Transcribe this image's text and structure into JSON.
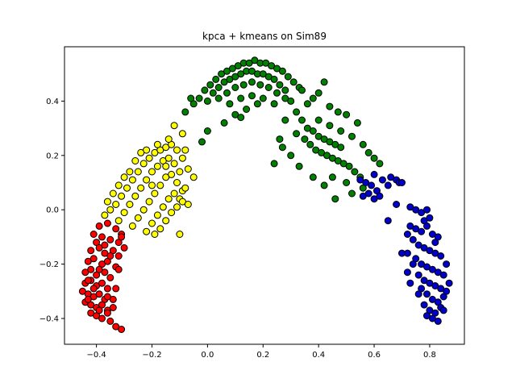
{
  "chart_data": {
    "type": "scatter",
    "title": "kpca + kmeans on Sim89",
    "xlabel": "",
    "ylabel": "",
    "xlim": [
      -0.515,
      0.925
    ],
    "ylim": [
      -0.495,
      0.6
    ],
    "grid": false,
    "xticks": [
      -0.4,
      -0.2,
      0.0,
      0.2,
      0.4,
      0.6,
      0.8
    ],
    "yticks": [
      -0.4,
      -0.2,
      0.0,
      0.2,
      0.4
    ],
    "xtick_labels": [
      "−0.4",
      "−0.2",
      "0.0",
      "0.2",
      "0.4",
      "0.6",
      "0.8"
    ],
    "ytick_labels": [
      "−0.4",
      "−0.2",
      "0.0",
      "0.2",
      "0.4"
    ],
    "series": [
      {
        "color": "#ff0000",
        "points": [
          [
            -0.41,
            -0.09
          ],
          [
            -0.39,
            -0.06
          ],
          [
            -0.36,
            -0.05
          ],
          [
            -0.33,
            -0.07
          ],
          [
            -0.31,
            -0.09
          ],
          [
            -0.4,
            -0.12
          ],
          [
            -0.38,
            -0.1
          ],
          [
            -0.35,
            -0.11
          ],
          [
            -0.32,
            -0.12
          ],
          [
            -0.3,
            -0.14
          ],
          [
            -0.42,
            -0.15
          ],
          [
            -0.39,
            -0.14
          ],
          [
            -0.37,
            -0.16
          ],
          [
            -0.34,
            -0.15
          ],
          [
            -0.32,
            -0.17
          ],
          [
            -0.43,
            -0.19
          ],
          [
            -0.41,
            -0.18
          ],
          [
            -0.38,
            -0.2
          ],
          [
            -0.36,
            -0.19
          ],
          [
            -0.33,
            -0.21
          ],
          [
            -0.44,
            -0.23
          ],
          [
            -0.42,
            -0.22
          ],
          [
            -0.4,
            -0.24
          ],
          [
            -0.37,
            -0.23
          ],
          [
            -0.35,
            -0.25
          ],
          [
            -0.44,
            -0.27
          ],
          [
            -0.42,
            -0.26
          ],
          [
            -0.4,
            -0.28
          ],
          [
            -0.38,
            -0.27
          ],
          [
            -0.36,
            -0.29
          ],
          [
            -0.45,
            -0.3
          ],
          [
            -0.43,
            -0.31
          ],
          [
            -0.41,
            -0.32
          ],
          [
            -0.39,
            -0.31
          ],
          [
            -0.37,
            -0.33
          ],
          [
            -0.44,
            -0.34
          ],
          [
            -0.42,
            -0.35
          ],
          [
            -0.4,
            -0.36
          ],
          [
            -0.38,
            -0.35
          ],
          [
            -0.36,
            -0.37
          ],
          [
            -0.42,
            -0.38
          ],
          [
            -0.4,
            -0.39
          ],
          [
            -0.38,
            -0.4
          ],
          [
            -0.36,
            -0.38
          ],
          [
            -0.34,
            -0.36
          ],
          [
            -0.33,
            -0.29
          ],
          [
            -0.34,
            -0.33
          ],
          [
            -0.32,
            -0.22
          ],
          [
            -0.33,
            -0.43
          ],
          [
            -0.35,
            -0.41
          ],
          [
            -0.31,
            -0.1
          ],
          [
            -0.43,
            -0.26
          ],
          [
            -0.39,
            -0.22
          ],
          [
            -0.37,
            -0.13
          ],
          [
            -0.41,
            -0.29
          ],
          [
            -0.39,
            -0.37
          ],
          [
            -0.43,
            -0.33
          ],
          [
            -0.35,
            -0.17
          ],
          [
            -0.31,
            -0.44
          ],
          [
            -0.36,
            -0.32
          ]
        ]
      },
      {
        "color": "#ffff00",
        "points": [
          [
            -0.37,
            -0.02
          ],
          [
            -0.35,
            0.0
          ],
          [
            -0.33,
            0.02
          ],
          [
            -0.31,
            0.05
          ],
          [
            -0.29,
            0.08
          ],
          [
            -0.27,
            0.11
          ],
          [
            -0.25,
            0.14
          ],
          [
            -0.23,
            0.17
          ],
          [
            -0.21,
            0.19
          ],
          [
            -0.19,
            0.21
          ],
          [
            -0.17,
            0.22
          ],
          [
            -0.15,
            0.23
          ],
          [
            -0.13,
            0.24
          ],
          [
            -0.11,
            0.22
          ],
          [
            -0.09,
            0.19
          ],
          [
            -0.32,
            -0.04
          ],
          [
            -0.3,
            -0.01
          ],
          [
            -0.28,
            0.02
          ],
          [
            -0.26,
            0.05
          ],
          [
            -0.24,
            0.08
          ],
          [
            -0.22,
            0.11
          ],
          [
            -0.2,
            0.14
          ],
          [
            -0.18,
            0.16
          ],
          [
            -0.16,
            0.18
          ],
          [
            -0.14,
            0.19
          ],
          [
            -0.12,
            0.17
          ],
          [
            -0.1,
            0.14
          ],
          [
            -0.27,
            -0.06
          ],
          [
            -0.25,
            -0.03
          ],
          [
            -0.23,
            0.0
          ],
          [
            -0.21,
            0.03
          ],
          [
            -0.19,
            0.06
          ],
          [
            -0.17,
            0.09
          ],
          [
            -0.15,
            0.12
          ],
          [
            -0.13,
            0.13
          ],
          [
            -0.11,
            0.1
          ],
          [
            -0.09,
            0.07
          ],
          [
            -0.22,
            -0.08
          ],
          [
            -0.2,
            -0.05
          ],
          [
            -0.18,
            -0.02
          ],
          [
            -0.16,
            0.01
          ],
          [
            -0.14,
            0.04
          ],
          [
            -0.12,
            0.06
          ],
          [
            -0.1,
            0.04
          ],
          [
            -0.08,
            0.08
          ],
          [
            -0.17,
            -0.07
          ],
          [
            -0.15,
            -0.04
          ],
          [
            -0.13,
            -0.01
          ],
          [
            -0.11,
            0.01
          ],
          [
            -0.09,
            0.03
          ],
          [
            -0.34,
            0.06
          ],
          [
            -0.3,
            0.12
          ],
          [
            -0.26,
            0.18
          ],
          [
            -0.22,
            0.22
          ],
          [
            -0.18,
            0.24
          ],
          [
            -0.14,
            0.26
          ],
          [
            -0.12,
            0.31
          ],
          [
            -0.09,
            0.28
          ],
          [
            -0.07,
            0.15
          ],
          [
            -0.05,
            0.12
          ],
          [
            -0.08,
            0.22
          ],
          [
            -0.07,
            0.02
          ],
          [
            -0.1,
            -0.09
          ],
          [
            -0.24,
            0.21
          ],
          [
            -0.2,
            0.09
          ],
          [
            -0.28,
            0.14
          ],
          [
            -0.32,
            0.09
          ],
          [
            -0.36,
            0.03
          ],
          [
            -0.15,
            0.16
          ],
          [
            -0.19,
            -0.09
          ]
        ]
      },
      {
        "color": "#008000",
        "points": [
          [
            -0.05,
            0.39
          ],
          [
            -0.03,
            0.41
          ],
          [
            -0.01,
            0.44
          ],
          [
            0.01,
            0.46
          ],
          [
            0.03,
            0.48
          ],
          [
            0.05,
            0.5
          ],
          [
            0.07,
            0.51
          ],
          [
            0.09,
            0.52
          ],
          [
            0.11,
            0.53
          ],
          [
            0.13,
            0.54
          ],
          [
            0.15,
            0.54
          ],
          [
            0.17,
            0.55
          ],
          [
            0.19,
            0.54
          ],
          [
            0.21,
            0.54
          ],
          [
            0.23,
            0.53
          ],
          [
            0.25,
            0.52
          ],
          [
            0.27,
            0.51
          ],
          [
            0.29,
            0.49
          ],
          [
            0.31,
            0.47
          ],
          [
            0.33,
            0.45
          ],
          [
            0.0,
            0.4
          ],
          [
            0.02,
            0.43
          ],
          [
            0.04,
            0.45
          ],
          [
            0.06,
            0.47
          ],
          [
            0.08,
            0.48
          ],
          [
            0.1,
            0.49
          ],
          [
            0.12,
            0.5
          ],
          [
            0.14,
            0.51
          ],
          [
            0.16,
            0.51
          ],
          [
            0.18,
            0.5
          ],
          [
            0.2,
            0.5
          ],
          [
            0.22,
            0.49
          ],
          [
            0.24,
            0.48
          ],
          [
            0.26,
            0.46
          ],
          [
            0.28,
            0.44
          ],
          [
            0.04,
            0.41
          ],
          [
            0.07,
            0.43
          ],
          [
            0.1,
            0.45
          ],
          [
            0.13,
            0.46
          ],
          [
            0.16,
            0.47
          ],
          [
            0.19,
            0.46
          ],
          [
            0.22,
            0.45
          ],
          [
            0.25,
            0.43
          ],
          [
            0.28,
            0.41
          ],
          [
            0.08,
            0.39
          ],
          [
            0.12,
            0.41
          ],
          [
            0.16,
            0.42
          ],
          [
            0.2,
            0.41
          ],
          [
            0.24,
            0.39
          ],
          [
            0.14,
            0.37
          ],
          [
            0.3,
            0.4
          ],
          [
            0.32,
            0.36
          ],
          [
            0.34,
            0.33
          ],
          [
            0.36,
            0.3
          ],
          [
            0.38,
            0.29
          ],
          [
            0.4,
            0.27
          ],
          [
            0.42,
            0.26
          ],
          [
            0.44,
            0.25
          ],
          [
            0.46,
            0.24
          ],
          [
            0.48,
            0.23
          ],
          [
            0.35,
            0.26
          ],
          [
            0.37,
            0.24
          ],
          [
            0.39,
            0.22
          ],
          [
            0.41,
            0.21
          ],
          [
            0.43,
            0.2
          ],
          [
            0.45,
            0.19
          ],
          [
            0.47,
            0.18
          ],
          [
            0.49,
            0.17
          ],
          [
            0.51,
            0.16
          ],
          [
            0.53,
            0.14
          ],
          [
            0.4,
            0.33
          ],
          [
            0.44,
            0.31
          ],
          [
            0.48,
            0.29
          ],
          [
            0.52,
            0.27
          ],
          [
            0.56,
            0.24
          ],
          [
            0.58,
            0.21
          ],
          [
            0.6,
            0.19
          ],
          [
            0.62,
            0.17
          ],
          [
            0.55,
            0.12
          ],
          [
            0.5,
            0.1
          ],
          [
            0.45,
            0.12
          ],
          [
            0.42,
            0.09
          ],
          [
            0.38,
            0.12
          ],
          [
            0.33,
            0.16
          ],
          [
            0.3,
            0.2
          ],
          [
            0.27,
            0.23
          ],
          [
            0.32,
            0.28
          ],
          [
            0.28,
            0.33
          ],
          [
            0.36,
            0.39
          ],
          [
            0.4,
            0.43
          ],
          [
            0.42,
            0.47
          ],
          [
            0.38,
            0.41
          ],
          [
            0.44,
            0.38
          ],
          [
            0.5,
            0.35
          ],
          [
            0.54,
            0.32
          ],
          [
            0.46,
            0.04
          ],
          [
            0.56,
            0.08
          ],
          [
            0.52,
            0.06
          ],
          [
            0.47,
            0.36
          ],
          [
            0.34,
            0.44
          ],
          [
            -0.08,
            0.36
          ],
          [
            -0.06,
            0.41
          ],
          [
            0.0,
            0.29
          ],
          [
            -0.02,
            0.25
          ],
          [
            0.06,
            0.32
          ],
          [
            0.1,
            0.35
          ],
          [
            0.18,
            0.39
          ],
          [
            0.26,
            0.26
          ],
          [
            0.24,
            0.17
          ],
          [
            0.12,
            0.34
          ]
        ]
      },
      {
        "color": "#0000cd",
        "points": [
          [
            0.55,
            0.11
          ],
          [
            0.57,
            0.1
          ],
          [
            0.59,
            0.09
          ],
          [
            0.61,
            0.07
          ],
          [
            0.63,
            0.11
          ],
          [
            0.6,
            0.13
          ],
          [
            0.58,
            0.06
          ],
          [
            0.56,
            0.05
          ],
          [
            0.66,
            0.12
          ],
          [
            0.68,
            0.11
          ],
          [
            0.69,
            0.1
          ],
          [
            0.7,
            0.1
          ],
          [
            0.65,
            0.09
          ],
          [
            0.62,
            0.05
          ],
          [
            0.6,
            0.04
          ],
          [
            0.68,
            0.02
          ],
          [
            0.65,
            -0.04
          ],
          [
            0.73,
            0.01
          ],
          [
            0.75,
            0.0
          ],
          [
            0.77,
            -0.01
          ],
          [
            0.79,
            0.0
          ],
          [
            0.73,
            -0.06
          ],
          [
            0.75,
            -0.07
          ],
          [
            0.77,
            -0.08
          ],
          [
            0.79,
            -0.06
          ],
          [
            0.81,
            -0.09
          ],
          [
            0.83,
            -0.1
          ],
          [
            0.74,
            -0.11
          ],
          [
            0.76,
            -0.13
          ],
          [
            0.78,
            -0.14
          ],
          [
            0.8,
            -0.15
          ],
          [
            0.82,
            -0.16
          ],
          [
            0.84,
            -0.17
          ],
          [
            0.72,
            -0.16
          ],
          [
            0.7,
            -0.16
          ],
          [
            0.75,
            -0.18
          ],
          [
            0.77,
            -0.2
          ],
          [
            0.79,
            -0.21
          ],
          [
            0.81,
            -0.22
          ],
          [
            0.83,
            -0.23
          ],
          [
            0.85,
            -0.24
          ],
          [
            0.76,
            -0.24
          ],
          [
            0.78,
            -0.26
          ],
          [
            0.8,
            -0.27
          ],
          [
            0.82,
            -0.28
          ],
          [
            0.84,
            -0.29
          ],
          [
            0.86,
            -0.3
          ],
          [
            0.77,
            -0.29
          ],
          [
            0.79,
            -0.31
          ],
          [
            0.81,
            -0.33
          ],
          [
            0.83,
            -0.34
          ],
          [
            0.85,
            -0.32
          ],
          [
            0.78,
            -0.35
          ],
          [
            0.8,
            -0.37
          ],
          [
            0.82,
            -0.38
          ],
          [
            0.84,
            -0.36
          ],
          [
            0.81,
            -0.4
          ],
          [
            0.83,
            -0.41
          ],
          [
            0.79,
            -0.39
          ],
          [
            0.85,
            -0.37
          ],
          [
            0.74,
            -0.2
          ],
          [
            0.72,
            -0.23
          ],
          [
            0.73,
            -0.27
          ],
          [
            0.76,
            -0.31
          ],
          [
            0.87,
            -0.27
          ],
          [
            0.86,
            -0.2
          ],
          [
            0.82,
            -0.12
          ],
          [
            0.78,
            -0.04
          ],
          [
            0.8,
            -0.03
          ],
          [
            0.72,
            -0.09
          ]
        ]
      }
    ]
  }
}
